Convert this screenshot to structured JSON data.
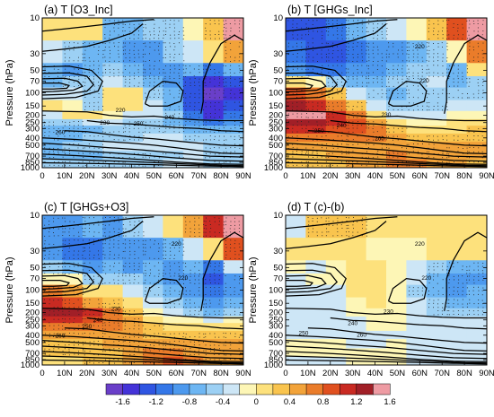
{
  "chart_data": {
    "type": "heatmap",
    "description_of_fill": "filled contours of temperature change, black line contours of climatological temperature, stippling where significant",
    "x_ticks": [
      "0",
      "10N",
      "20N",
      "30N",
      "40N",
      "50N",
      "60N",
      "70N",
      "80N",
      "90N"
    ],
    "x_range": [
      0,
      90
    ],
    "y_axis": {
      "label": "Pressure (hPa)",
      "scale": "log",
      "ticks": [
        10,
        30,
        50,
        70,
        100,
        150,
        200,
        250,
        300,
        400,
        500,
        700,
        850,
        1000
      ],
      "range": [
        10,
        1000
      ]
    },
    "colorbar": {
      "tick_labels": [
        "-1.6",
        "-1.2",
        "-0.8",
        "-0.4",
        "0",
        "0.4",
        "0.8",
        "1.2",
        "1.6"
      ],
      "levels": [
        -1.6,
        -1.4,
        -1.2,
        -1.0,
        -0.8,
        -0.6,
        -0.4,
        -0.2,
        0,
        0.2,
        0.4,
        0.6,
        0.8,
        1.0,
        1.2,
        1.4,
        1.6
      ],
      "colors": [
        "#6a3fc9",
        "#4433d8",
        "#2f55e2",
        "#3477e8",
        "#4d99ee",
        "#6db6f3",
        "#9cd0f4",
        "#cde6f6",
        "#fdf6b6",
        "#fde17c",
        "#f9c44e",
        "#f2a33a",
        "#ea7c2a",
        "#e0501f",
        "#c92a22",
        "#a11f27",
        "#ee9ba3"
      ]
    },
    "climatology_contour_labels": [
      "220",
      "230",
      "240",
      "250",
      "260"
    ],
    "panels": [
      {
        "title": "(a) T [O3_Inc]",
        "contour_labels": [
          "260",
          "230",
          "220",
          "250",
          "240"
        ],
        "fill_cells": [
          [
            0.2,
            0.2,
            0.3,
            -0.6,
            -0.6,
            -0.4,
            -0.4,
            0.0,
            0.4,
            1.6
          ],
          [
            -0.2,
            -0.4,
            -0.6,
            -0.6,
            -0.8,
            -0.8,
            -0.4,
            -0.2,
            0.2,
            0.6
          ],
          [
            -0.6,
            -0.8,
            -0.6,
            -0.4,
            -0.6,
            -0.8,
            -0.8,
            -0.6,
            -1.0,
            -0.6
          ],
          [
            -0.6,
            -0.4,
            -0.4,
            -0.2,
            -0.4,
            -0.6,
            -0.8,
            -1.2,
            -1.4,
            -1.2
          ],
          [
            -0.2,
            -0.2,
            -0.4,
            0.2,
            0.2,
            -0.4,
            -0.6,
            -1.2,
            -1.6,
            -1.4
          ],
          [
            0.2,
            0.0,
            -0.4,
            0.2,
            0.2,
            -0.2,
            -0.6,
            -1.2,
            -1.4,
            -1.2
          ],
          [
            -0.2,
            0.2,
            0.2,
            0.0,
            -0.2,
            -0.2,
            -0.4,
            -1.0,
            -1.4,
            -1.0
          ],
          [
            -0.4,
            -0.4,
            -0.2,
            -0.2,
            -0.4,
            -0.4,
            -0.6,
            -0.8,
            -1.0,
            -0.8
          ],
          [
            -0.6,
            -0.6,
            -0.6,
            -0.4,
            -0.4,
            -0.4,
            -0.4,
            -0.6,
            -0.6,
            -0.6
          ],
          [
            -0.6,
            -0.6,
            -0.4,
            -0.4,
            -0.4,
            -0.2,
            -0.2,
            -0.4,
            -0.4,
            -0.4
          ],
          [
            -0.6,
            -0.4,
            -0.4,
            -0.2,
            -0.2,
            -0.2,
            -0.2,
            -0.2,
            -0.4,
            -0.4
          ],
          [
            -0.6,
            -0.6,
            -0.6,
            -0.4,
            -0.4,
            -0.4,
            -0.4,
            -0.2,
            -0.4,
            -0.4
          ],
          [
            -0.4,
            -0.4,
            -0.4,
            -0.4,
            -0.4,
            -0.4,
            -0.2,
            -0.2,
            -0.4,
            -0.4
          ]
        ]
      },
      {
        "title": "(b) T [GHGs_Inc]",
        "contour_labels": [
          "220",
          "220",
          "230",
          "240",
          "250",
          "260"
        ],
        "fill_cells": [
          [
            -1.2,
            -1.2,
            -1.0,
            -0.6,
            -0.4,
            -0.2,
            0.0,
            0.4,
            1.0,
            1.6
          ],
          [
            -1.0,
            -1.2,
            -1.2,
            -1.0,
            -0.8,
            -0.8,
            -0.6,
            -0.4,
            0.0,
            0.8
          ],
          [
            -0.8,
            -1.0,
            -1.0,
            -0.8,
            -0.8,
            -0.6,
            -0.4,
            -0.4,
            -0.6,
            0.2
          ],
          [
            0.2,
            0.0,
            -0.4,
            -0.6,
            -0.6,
            -0.4,
            -0.4,
            -0.2,
            -0.6,
            -0.4
          ],
          [
            1.0,
            0.8,
            0.4,
            -0.2,
            -0.4,
            -0.6,
            -0.4,
            -0.4,
            -0.4,
            -0.4
          ],
          [
            1.4,
            1.2,
            0.8,
            0.4,
            -0.2,
            -0.4,
            -0.4,
            -0.4,
            -0.2,
            -0.2
          ],
          [
            1.6,
            1.6,
            1.2,
            0.8,
            0.2,
            -0.2,
            -0.2,
            -0.2,
            0.0,
            0.0
          ],
          [
            1.4,
            1.4,
            1.2,
            1.0,
            0.6,
            0.2,
            0.0,
            0.0,
            0.2,
            0.2
          ],
          [
            1.2,
            1.2,
            1.0,
            1.0,
            0.8,
            0.4,
            0.2,
            0.2,
            0.2,
            0.4
          ],
          [
            0.8,
            0.8,
            0.8,
            0.8,
            0.8,
            0.6,
            0.4,
            0.4,
            0.4,
            0.4
          ],
          [
            0.6,
            0.6,
            0.6,
            0.6,
            0.6,
            0.6,
            0.6,
            0.6,
            0.6,
            0.6
          ],
          [
            0.4,
            0.4,
            0.6,
            0.6,
            0.6,
            0.8,
            0.6,
            0.6,
            0.6,
            0.6
          ],
          [
            0.4,
            0.4,
            0.4,
            0.6,
            0.6,
            0.8,
            0.8,
            0.6,
            0.6,
            0.4
          ]
        ]
      },
      {
        "title": "(c) T [GHGs+O3]",
        "contour_labels": [
          "220",
          "220",
          "230",
          "240",
          "250",
          "260"
        ],
        "fill_cells": [
          [
            -0.8,
            -0.8,
            -0.6,
            -0.8,
            -0.4,
            -0.2,
            0.2,
            0.6,
            1.2,
            1.6
          ],
          [
            -0.8,
            -1.0,
            -1.0,
            -0.8,
            -0.8,
            -0.8,
            -0.6,
            -0.2,
            0.2,
            1.0
          ],
          [
            -0.4,
            -0.6,
            -0.8,
            -0.6,
            -0.8,
            -0.6,
            -0.8,
            -0.6,
            -1.0,
            -0.2
          ],
          [
            0.0,
            0.0,
            -0.4,
            -0.4,
            -0.4,
            -0.6,
            -0.8,
            -0.8,
            -1.2,
            -0.8
          ],
          [
            0.8,
            0.6,
            0.2,
            0.2,
            -0.2,
            -0.4,
            -0.6,
            -0.8,
            -1.0,
            -0.8
          ],
          [
            1.2,
            1.0,
            0.6,
            0.4,
            0.2,
            -0.2,
            -0.4,
            -0.6,
            -0.8,
            -0.6
          ],
          [
            1.4,
            1.4,
            1.2,
            0.8,
            0.4,
            0.0,
            -0.2,
            -0.4,
            -0.6,
            -0.4
          ],
          [
            1.2,
            1.2,
            1.0,
            0.8,
            0.6,
            0.2,
            0.0,
            0.0,
            -0.2,
            0.0
          ],
          [
            0.8,
            0.8,
            0.8,
            0.8,
            0.6,
            0.4,
            0.2,
            0.2,
            0.2,
            0.2
          ],
          [
            0.6,
            0.6,
            0.6,
            0.6,
            0.6,
            0.4,
            0.4,
            0.4,
            0.4,
            0.4
          ],
          [
            0.4,
            0.4,
            0.4,
            0.6,
            0.6,
            0.6,
            0.6,
            0.6,
            0.6,
            0.6
          ],
          [
            0.4,
            0.4,
            0.4,
            0.4,
            0.6,
            0.8,
            0.8,
            0.6,
            0.6,
            0.6
          ],
          [
            0.2,
            0.2,
            0.4,
            0.4,
            0.6,
            0.8,
            1.0,
            0.8,
            0.6,
            0.6
          ]
        ]
      },
      {
        "title": "(d) T (c)-(b)",
        "contour_labels": [
          "220",
          "220",
          "230",
          "240",
          "250",
          "260"
        ],
        "fill_cells": [
          [
            -0.2,
            0.4,
            0.4,
            0.4,
            0.2,
            0.2,
            0.2,
            0.2,
            0.2,
            0.2
          ],
          [
            0.2,
            0.2,
            0.2,
            0.2,
            0.0,
            0.0,
            0.0,
            0.2,
            0.2,
            0.2
          ],
          [
            0.0,
            -0.2,
            0.0,
            0.2,
            0.2,
            0.0,
            -0.2,
            -0.4,
            -0.6,
            -0.6
          ],
          [
            -0.2,
            0.0,
            0.0,
            0.2,
            0.2,
            0.0,
            -0.2,
            -0.6,
            -0.8,
            -0.8
          ],
          [
            -0.2,
            -0.2,
            -0.2,
            0.2,
            0.2,
            0.0,
            -0.4,
            -0.6,
            -0.8,
            -0.6
          ],
          [
            -0.2,
            -0.2,
            -0.2,
            0.0,
            0.2,
            0.0,
            -0.2,
            -0.4,
            -0.6,
            -0.6
          ],
          [
            -0.2,
            -0.2,
            -0.2,
            0.0,
            0.0,
            0.0,
            -0.2,
            -0.4,
            -0.4,
            -0.4
          ],
          [
            -0.2,
            -0.2,
            -0.2,
            -0.2,
            0.0,
            0.0,
            -0.2,
            -0.2,
            -0.2,
            -0.2
          ],
          [
            -0.2,
            -0.2,
            -0.2,
            -0.2,
            0.0,
            0.0,
            -0.2,
            -0.2,
            -0.2,
            -0.2
          ],
          [
            -0.2,
            -0.2,
            -0.2,
            -0.2,
            -0.2,
            -0.2,
            -0.2,
            -0.2,
            -0.2,
            -0.2
          ],
          [
            0.0,
            0.0,
            0.0,
            -0.2,
            -0.2,
            0.0,
            -0.2,
            -0.2,
            -0.2,
            -0.2
          ],
          [
            0.0,
            0.0,
            0.0,
            0.0,
            0.0,
            0.0,
            -0.2,
            -0.2,
            -0.2,
            -0.2
          ],
          [
            -0.2,
            -0.2,
            -0.2,
            0.0,
            0.0,
            0.0,
            -0.2,
            -0.2,
            -0.2,
            -0.2
          ]
        ]
      }
    ]
  }
}
